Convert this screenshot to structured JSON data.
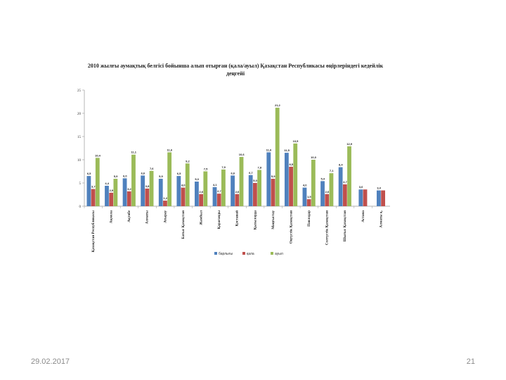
{
  "slide": {
    "date": "29.02.2017",
    "page_number": "21"
  },
  "chart_data": {
    "type": "bar",
    "title": "2010 жылғы аумақтық белгісі бойынша алып отырған (қала/ауыл) Қазақстан Республикасы өңірлеріндегі кедейлік деңгейі",
    "categories": [
      "Қазақстан Республикасы",
      "Ақмола",
      "Ақтөбе",
      "Алматы",
      "Атырау",
      "Батыс Қазақстан",
      "Жамбыл",
      "Қарағанды",
      "Қостанай",
      "Қызылорда",
      "Маңғыстау",
      "Оңтүстік Қазақстан",
      "Павлодар",
      "Солтүстік Қазақстан",
      "Шығыс Қазақстан",
      "Астана",
      "Алматы қ."
    ],
    "series": [
      {
        "name": "барлығы",
        "color": "#4f81bd",
        "values": [
          6.5,
          4.4,
          6.0,
          6.6,
          5.9,
          6.5,
          5.3,
          4.1,
          6.6,
          6.7,
          11.6,
          11.5,
          4.0,
          5.4,
          8.4,
          3.6,
          3.4
        ]
      },
      {
        "name": "қала",
        "color": "#c0504d",
        "values": [
          3.7,
          2.9,
          3.2,
          3.8,
          1.2,
          4.0,
          2.6,
          2.7,
          2.6,
          5.0,
          5.9,
          8.5,
          1.5,
          2.6,
          4.7,
          3.6,
          3.4
        ]
      },
      {
        "name": "ауыл",
        "color": "#9bbb59",
        "values": [
          10.4,
          5.9,
          11.1,
          7.6,
          11.6,
          9.2,
          7.5,
          7.9,
          10.6,
          7.8,
          21.2,
          13.5,
          10.0,
          7.1,
          12.9,
          null,
          null
        ]
      }
    ],
    "data_labels": [
      [
        "6,5",
        "4,4",
        "6,0",
        "6,6",
        "5,9",
        "6,5",
        "5,3",
        "4,1",
        "6,6",
        "6,7",
        "11,6",
        "11,5",
        "4,0",
        "5,4",
        "8,4",
        "3,6",
        "3,4"
      ],
      [
        "3,7",
        "2,9",
        "3,2",
        "3,8",
        "1,2",
        "4,0",
        "2,6",
        "2,7",
        "2,6",
        "5,0",
        "5,9",
        "8,5",
        "1,5",
        "2,6",
        "4,7",
        "",
        ""
      ],
      [
        "10,4",
        "5,9",
        "11,1",
        "7,6",
        "11,6",
        "9,2",
        "7,5",
        "7,9",
        "10,6",
        "7,8",
        "21,2",
        "13,5",
        "10,0",
        "7,1",
        "12,9",
        "",
        ""
      ]
    ],
    "y_ticks": [
      0,
      5,
      10,
      15,
      20,
      25
    ],
    "ylim": [
      0,
      25
    ],
    "grid": false,
    "legend_position": "bottom"
  }
}
